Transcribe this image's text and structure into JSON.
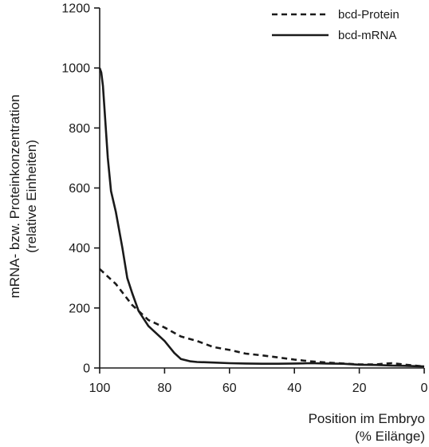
{
  "chart_data": {
    "type": "line",
    "xlabel_lines": [
      "Position im Embryo",
      "(% Eilänge)"
    ],
    "ylabel_lines": [
      "mRNA- bzw. Proteinkonzentration",
      "(relative Einheiten)"
    ],
    "xlim": [
      100,
      0
    ],
    "ylim": [
      0,
      1200
    ],
    "x_ticks": [
      100,
      80,
      60,
      40,
      20,
      0
    ],
    "y_ticks": [
      0,
      200,
      400,
      600,
      800,
      1000,
      1200
    ],
    "grid": false,
    "legend_position": "top-right",
    "series": [
      {
        "name": "bcd-Protein",
        "style": "dashed",
        "color": "#1a1a1a",
        "points": [
          [
            100,
            330
          ],
          [
            95,
            280
          ],
          [
            90,
            210
          ],
          [
            85,
            160
          ],
          [
            80,
            135
          ],
          [
            75,
            105
          ],
          [
            70,
            90
          ],
          [
            65,
            70
          ],
          [
            60,
            60
          ],
          [
            55,
            48
          ],
          [
            50,
            42
          ],
          [
            45,
            35
          ],
          [
            40,
            28
          ],
          [
            35,
            22
          ],
          [
            30,
            18
          ],
          [
            25,
            15
          ],
          [
            20,
            12
          ],
          [
            15,
            12
          ],
          [
            10,
            16
          ],
          [
            5,
            10
          ],
          [
            0,
            5
          ]
        ]
      },
      {
        "name": "bcd-mRNA",
        "style": "solid",
        "color": "#1a1a1a",
        "points": [
          [
            100,
            1000
          ],
          [
            99.5,
            985
          ],
          [
            99,
            940
          ],
          [
            97.5,
            700
          ],
          [
            96.5,
            590
          ],
          [
            95,
            520
          ],
          [
            93,
            400
          ],
          [
            91.5,
            300
          ],
          [
            90,
            250
          ],
          [
            88,
            190
          ],
          [
            85,
            140
          ],
          [
            80,
            90
          ],
          [
            77,
            50
          ],
          [
            75,
            30
          ],
          [
            72,
            22
          ],
          [
            70,
            20
          ],
          [
            65,
            18
          ],
          [
            60,
            16
          ],
          [
            55,
            15
          ],
          [
            50,
            14
          ],
          [
            45,
            14
          ],
          [
            40,
            15
          ],
          [
            35,
            16
          ],
          [
            30,
            15
          ],
          [
            25,
            14
          ],
          [
            20,
            11
          ],
          [
            15,
            10
          ],
          [
            10,
            8
          ],
          [
            5,
            7
          ],
          [
            0,
            5
          ]
        ]
      }
    ]
  }
}
